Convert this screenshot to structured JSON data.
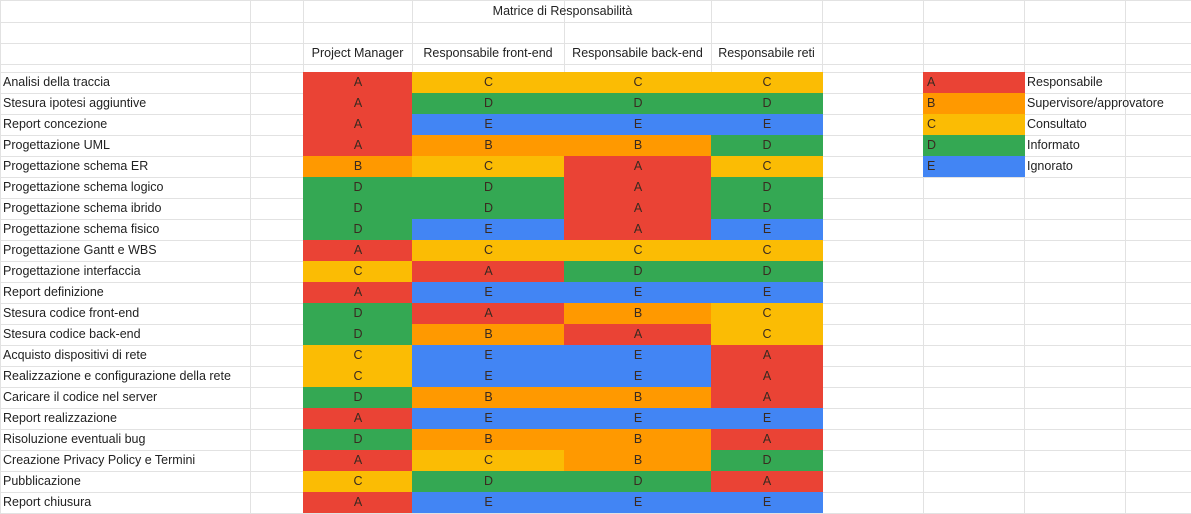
{
  "sheet": {
    "title": "Matrice di Responsabilità",
    "columns": [
      "Project Manager",
      "Responsabile front-end",
      "Responsabile back-end",
      "Responsabile reti"
    ],
    "rows": [
      {
        "task": "Analisi della traccia",
        "values": [
          "A",
          "C",
          "C",
          "C"
        ]
      },
      {
        "task": "Stesura ipotesi aggiuntive",
        "values": [
          "A",
          "D",
          "D",
          "D"
        ]
      },
      {
        "task": "Report concezione",
        "values": [
          "A",
          "E",
          "E",
          "E"
        ]
      },
      {
        "task": "Progettazione UML",
        "values": [
          "A",
          "B",
          "B",
          "D"
        ]
      },
      {
        "task": "Progettazione schema ER",
        "values": [
          "B",
          "C",
          "A",
          "C"
        ]
      },
      {
        "task": "Progettazione schema logico",
        "values": [
          "D",
          "D",
          "A",
          "D"
        ]
      },
      {
        "task": "Progettazione schema ibrido",
        "values": [
          "D",
          "D",
          "A",
          "D"
        ]
      },
      {
        "task": "Progettazione schema fisico",
        "values": [
          "D",
          "E",
          "A",
          "E"
        ]
      },
      {
        "task": "Progettazione Gantt e WBS",
        "values": [
          "A",
          "C",
          "C",
          "C"
        ]
      },
      {
        "task": "Progettazione interfaccia",
        "values": [
          "C",
          "A",
          "D",
          "D"
        ]
      },
      {
        "task": "Report definizione",
        "values": [
          "A",
          "E",
          "E",
          "E"
        ]
      },
      {
        "task": "Stesura codice front-end",
        "values": [
          "D",
          "A",
          "B",
          "C"
        ]
      },
      {
        "task": "Stesura codice back-end",
        "values": [
          "D",
          "B",
          "A",
          "C"
        ]
      },
      {
        "task": "Acquisto dispositivi di rete",
        "values": [
          "C",
          "E",
          "E",
          "A"
        ]
      },
      {
        "task": "Realizzazione e configurazione della rete",
        "values": [
          "C",
          "E",
          "E",
          "A"
        ]
      },
      {
        "task": "Caricare il codice nel server",
        "values": [
          "D",
          "B",
          "B",
          "A"
        ]
      },
      {
        "task": "Report realizzazione",
        "values": [
          "A",
          "E",
          "E",
          "E"
        ]
      },
      {
        "task": "Risoluzione eventuali bug",
        "values": [
          "D",
          "B",
          "B",
          "A"
        ]
      },
      {
        "task": "Creazione Privacy Policy e Termini",
        "values": [
          "A",
          "C",
          "B",
          "D"
        ]
      },
      {
        "task": "Pubblicazione",
        "values": [
          "C",
          "D",
          "D",
          "A"
        ]
      },
      {
        "task": "Report chiusura",
        "values": [
          "A",
          "E",
          "E",
          "E"
        ]
      }
    ],
    "legend": [
      {
        "code": "A",
        "label": "Responsabile"
      },
      {
        "code": "B",
        "label": "Supervisore/approvatore"
      },
      {
        "code": "C",
        "label": "Consultato"
      },
      {
        "code": "D",
        "label": "Informato"
      },
      {
        "code": "E",
        "label": "Ignorato"
      }
    ],
    "colors": {
      "A": "#ea4335",
      "B": "#ff9900",
      "C": "#fbbc04",
      "D": "#34a853",
      "E": "#4285f4",
      "gridline": "#e2e2e2"
    }
  }
}
